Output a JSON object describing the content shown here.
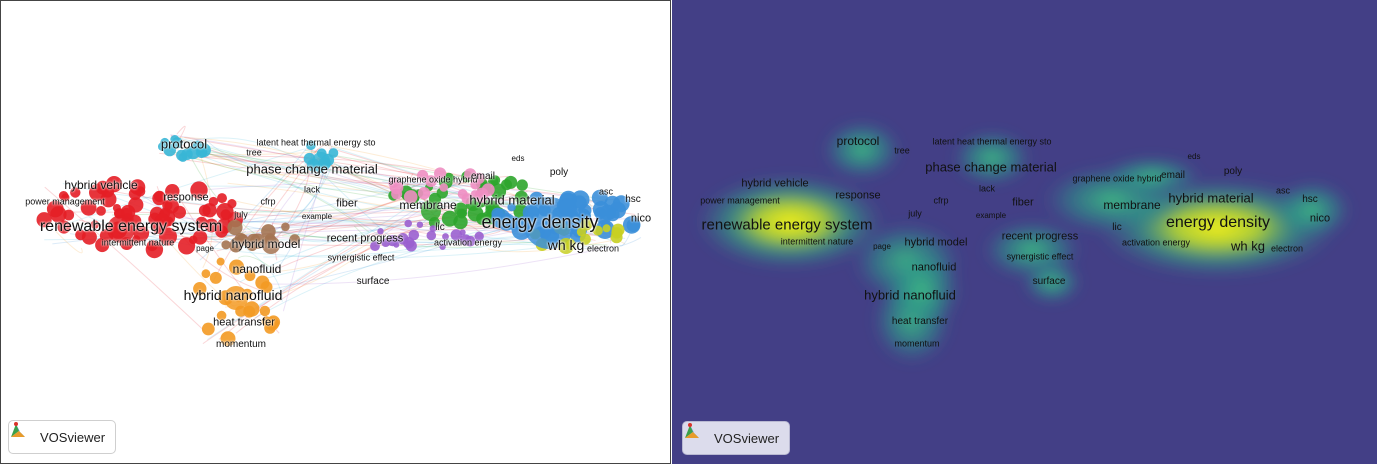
{
  "app_name": "VOSviewer",
  "colors": {
    "cluster_red": "#e41e26",
    "cluster_green": "#2ea52c",
    "cluster_blue": "#3b8fd9",
    "cluster_yellow": "#c8cf22",
    "cluster_purple": "#9a5fcf",
    "cluster_cyan": "#38b6d6",
    "cluster_orange": "#f39a23",
    "cluster_brown": "#a47452",
    "cluster_pink": "#ee8ec2",
    "density_low": "#433f86",
    "density_high": "#f2ee1a"
  },
  "network_view": {
    "labels": [
      {
        "text": "protocol",
        "size": 13,
        "weight": "normal"
      },
      {
        "text": "tree",
        "size": 9,
        "weight": "normal"
      },
      {
        "text": "latent heat thermal energy sto",
        "size": 9,
        "weight": "normal"
      },
      {
        "text": "phase change material",
        "size": 13,
        "weight": "normal"
      },
      {
        "text": "hybrid vehicle",
        "size": 12,
        "weight": "normal"
      },
      {
        "text": "response",
        "size": 11,
        "weight": "normal"
      },
      {
        "text": "power management",
        "size": 9,
        "weight": "normal"
      },
      {
        "text": "lack",
        "size": 9,
        "weight": "normal"
      },
      {
        "text": "cfrp",
        "size": 9,
        "weight": "normal"
      },
      {
        "text": "july",
        "size": 9,
        "weight": "normal"
      },
      {
        "text": "example",
        "size": 8,
        "weight": "normal"
      },
      {
        "text": "fiber",
        "size": 11,
        "weight": "normal"
      },
      {
        "text": "renewable energy system",
        "size": 16,
        "weight": "normal"
      },
      {
        "text": "intermittent nature",
        "size": 9,
        "weight": "normal"
      },
      {
        "text": "page",
        "size": 8,
        "weight": "normal"
      },
      {
        "text": "hybrid model",
        "size": 12,
        "weight": "normal"
      },
      {
        "text": "recent progress",
        "size": 11,
        "weight": "normal"
      },
      {
        "text": "synergistic effect",
        "size": 9,
        "weight": "normal"
      },
      {
        "text": "nanofluid",
        "size": 12,
        "weight": "normal"
      },
      {
        "text": "hybrid nanofluid",
        "size": 14,
        "weight": "normal"
      },
      {
        "text": "surface",
        "size": 10,
        "weight": "normal"
      },
      {
        "text": "heat transfer",
        "size": 11,
        "weight": "normal"
      },
      {
        "text": "momentum",
        "size": 10,
        "weight": "normal"
      },
      {
        "text": "graphene oxide hybrid",
        "size": 9,
        "weight": "normal"
      },
      {
        "text": "email",
        "size": 10,
        "weight": "normal"
      },
      {
        "text": "eds",
        "size": 8,
        "weight": "normal"
      },
      {
        "text": "poly",
        "size": 10,
        "weight": "normal"
      },
      {
        "text": "membrane",
        "size": 12,
        "weight": "normal"
      },
      {
        "text": "hybrid material",
        "size": 13,
        "weight": "normal"
      },
      {
        "text": "energy density",
        "size": 18,
        "weight": "normal"
      },
      {
        "text": "lic",
        "size": 10,
        "weight": "normal"
      },
      {
        "text": "activation energy",
        "size": 9,
        "weight": "normal"
      },
      {
        "text": "wh kg",
        "size": 14,
        "weight": "normal"
      },
      {
        "text": "electron",
        "size": 9,
        "weight": "normal"
      },
      {
        "text": "asc",
        "size": 9,
        "weight": "normal"
      },
      {
        "text": "hsc",
        "size": 10,
        "weight": "normal"
      },
      {
        "text": "nico",
        "size": 11,
        "weight": "normal"
      }
    ]
  },
  "density_view": {
    "labels": [
      {
        "text": "protocol",
        "size": 12
      },
      {
        "text": "tree",
        "size": 9
      },
      {
        "text": "latent heat thermal energy sto",
        "size": 9
      },
      {
        "text": "phase change material",
        "size": 13
      },
      {
        "text": "eds",
        "size": 8
      },
      {
        "text": "poly",
        "size": 10
      },
      {
        "text": "hybrid vehicle",
        "size": 11
      },
      {
        "text": "response",
        "size": 11
      },
      {
        "text": "lack",
        "size": 9
      },
      {
        "text": "graphene oxide hybrid",
        "size": 9
      },
      {
        "text": "email",
        "size": 10
      },
      {
        "text": "power management",
        "size": 9
      },
      {
        "text": "cfrp",
        "size": 9
      },
      {
        "text": "fiber",
        "size": 11
      },
      {
        "text": "membrane",
        "size": 12
      },
      {
        "text": "hybrid material",
        "size": 13
      },
      {
        "text": "asc",
        "size": 9
      },
      {
        "text": "hsc",
        "size": 10
      },
      {
        "text": "july",
        "size": 9
      },
      {
        "text": "example",
        "size": 8
      },
      {
        "text": "energy density",
        "size": 16
      },
      {
        "text": "nico",
        "size": 11
      },
      {
        "text": "renewable energy system",
        "size": 15
      },
      {
        "text": "lic",
        "size": 10
      },
      {
        "text": "recent progress",
        "size": 11
      },
      {
        "text": "intermittent nature",
        "size": 9
      },
      {
        "text": "page",
        "size": 8
      },
      {
        "text": "hybrid model",
        "size": 11
      },
      {
        "text": "activation energy",
        "size": 9
      },
      {
        "text": "wh kg",
        "size": 13
      },
      {
        "text": "electron",
        "size": 9
      },
      {
        "text": "synergistic effect",
        "size": 9
      },
      {
        "text": "nanofluid",
        "size": 11
      },
      {
        "text": "surface",
        "size": 10
      },
      {
        "text": "hybrid nanofluid",
        "size": 13
      },
      {
        "text": "heat transfer",
        "size": 10
      },
      {
        "text": "momentum",
        "size": 9
      }
    ]
  }
}
